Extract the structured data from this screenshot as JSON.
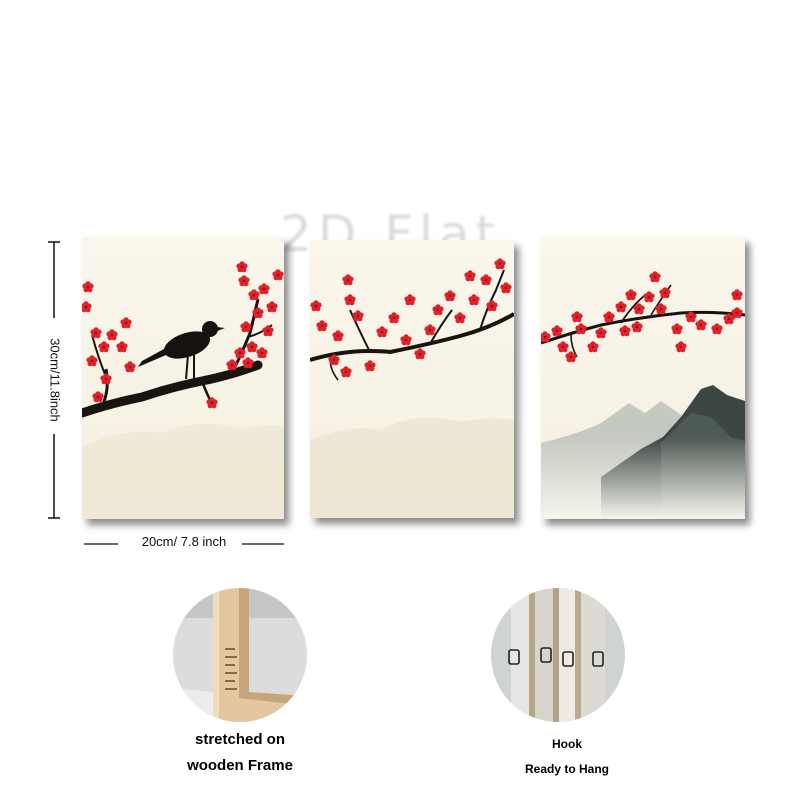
{
  "watermark": "2D Flat",
  "dimensions": {
    "height_label": "30cm/11.8inch",
    "width_label": "20cm/ 7.8 inch"
  },
  "features": {
    "frame": {
      "line1": "stretched on",
      "line2": "wooden Frame"
    },
    "hook": {
      "line1": "Hook",
      "line2": "Ready to Hang"
    }
  },
  "colors": {
    "blossom": "#e0202a",
    "branch": "#1a1410",
    "mountain": "#3c4744",
    "canvas": "#f7f2e6"
  },
  "icons": [
    "bird-silhouette-icon",
    "plum-blossom-icon",
    "mountain-icon",
    "sawtooth-hook-icon"
  ]
}
